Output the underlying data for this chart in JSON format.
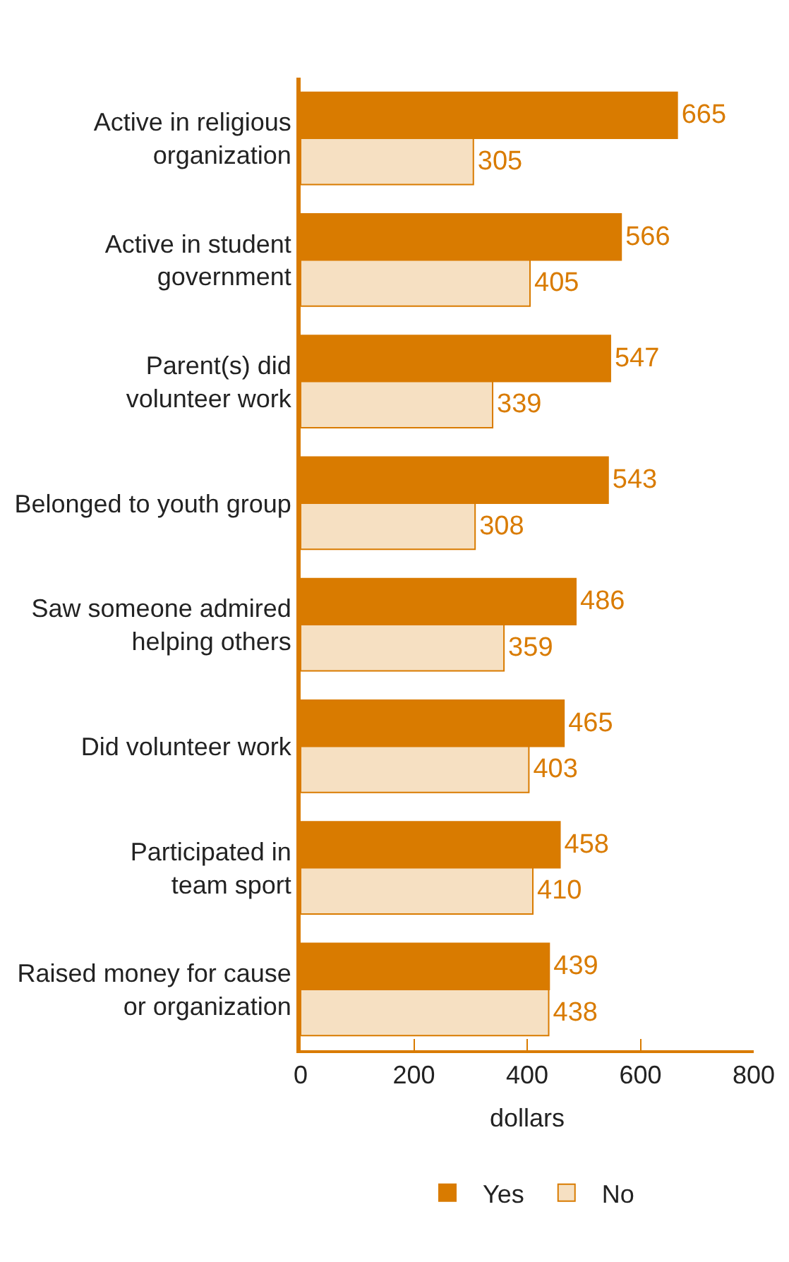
{
  "chart_data": {
    "type": "bar",
    "orientation": "horizontal",
    "xlabel": "dollars",
    "categories": [
      "Active in religious\norganization",
      "Active in student\ngovernment",
      "Parent(s) did\nvolunteer work",
      "Belonged to youth group",
      "Saw someone admired\nhelping others",
      "Did volunteer work",
      "Participated in\nteam sport",
      "Raised money for cause\nor organization"
    ],
    "series": [
      {
        "name": "Yes",
        "color": "#d97b00",
        "values": [
          665,
          566,
          547,
          543,
          486,
          465,
          458,
          439
        ]
      },
      {
        "name": "No",
        "color": "#f6e0c2",
        "values": [
          305,
          405,
          339,
          308,
          359,
          403,
          410,
          438
        ]
      }
    ],
    "xlim": [
      0,
      800
    ],
    "xticks": [
      0,
      200,
      400,
      600,
      800
    ],
    "data_labels": true,
    "legend": "bottom"
  }
}
